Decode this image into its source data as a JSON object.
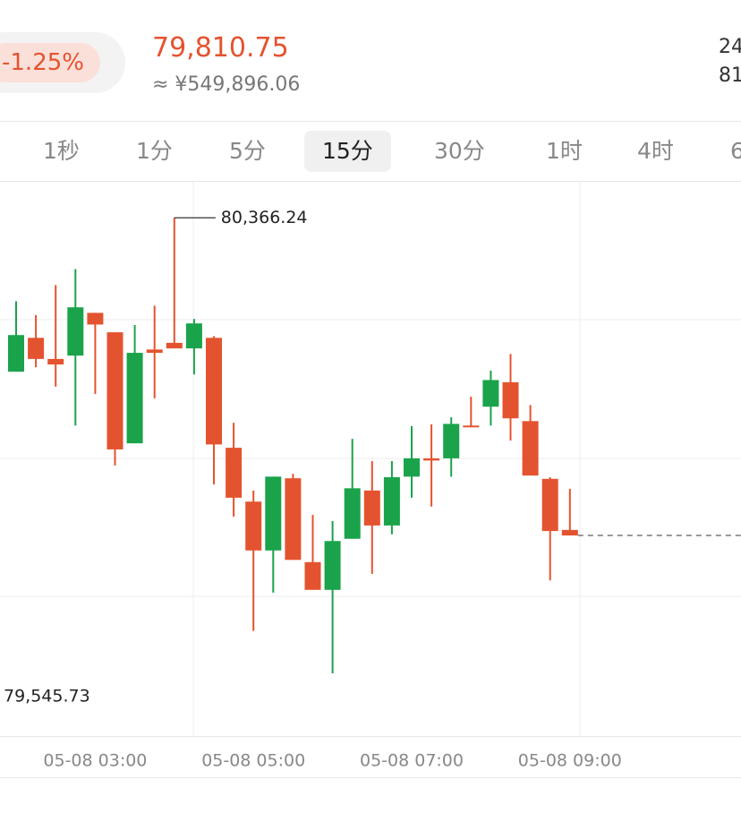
{
  "header": {
    "change": "-1.25%",
    "price": "79,810.75",
    "price_cny": "≈ ¥549,896.06",
    "right_top": "24",
    "right_bottom": "81"
  },
  "tabs": [
    "1秒",
    "1分",
    "5分",
    "15分",
    "30分",
    "1时",
    "4时",
    "6"
  ],
  "chart_data": {
    "type": "candlestick",
    "categories": [
      null,
      null,
      null,
      null,
      "05-08 03:00",
      null,
      null,
      null,
      null,
      null,
      null,
      null,
      "05-08 05:00",
      null,
      null,
      null,
      null,
      null,
      null,
      null,
      "05-08 07:00",
      null,
      null,
      null,
      null,
      null,
      null,
      null,
      "05-08 09:00"
    ],
    "open": [
      80089,
      80150,
      80112,
      80118,
      80195,
      80160,
      79960,
      80129,
      80141,
      80131,
      80150,
      79952,
      79855,
      79767,
      79897,
      79746,
      79696,
      79788,
      79875,
      79812,
      79900,
      79933,
      79933,
      79992,
      80026,
      80070,
      80000,
      79896,
      79804
    ],
    "high": [
      80216,
      80191,
      80245,
      80274,
      80195,
      80160,
      80173,
      80208,
      80366.24,
      80184,
      80153,
      79997,
      79875,
      79900,
      79905,
      79831,
      79820,
      79968,
      79928,
      79928,
      79991,
      79994,
      80007,
      80044,
      80091,
      80121,
      80029,
      79899,
      79878
    ],
    "low": [
      80089,
      80097,
      80062,
      79992,
      80049,
      79920,
      79960,
      80041,
      80131,
      80084,
      79886,
      79828,
      79622,
      79691,
      79750,
      79696,
      79545.73,
      79788,
      79725,
      79796,
      79862,
      79846,
      79900,
      79989,
      79992,
      79965,
      79902,
      79713,
      79794
    ],
    "close": [
      80155,
      80112,
      80102,
      80205,
      80174,
      79949,
      80123,
      80123,
      80131,
      80176,
      79958,
      79862,
      79767,
      79900,
      79750,
      79696,
      79784,
      79879,
      79812,
      79899,
      79933,
      79929,
      79995,
      79989,
      80074,
      80005,
      79902,
      79802,
      79794
    ],
    "up_color": "#1aa34a",
    "down_color": "#e4532f",
    "ylim": [
      79436,
      80436
    ],
    "annotations": [
      {
        "value": 80366.24,
        "label": "80,366.24"
      },
      {
        "value": 79545.73,
        "label": "79,545.73"
      }
    ]
  }
}
